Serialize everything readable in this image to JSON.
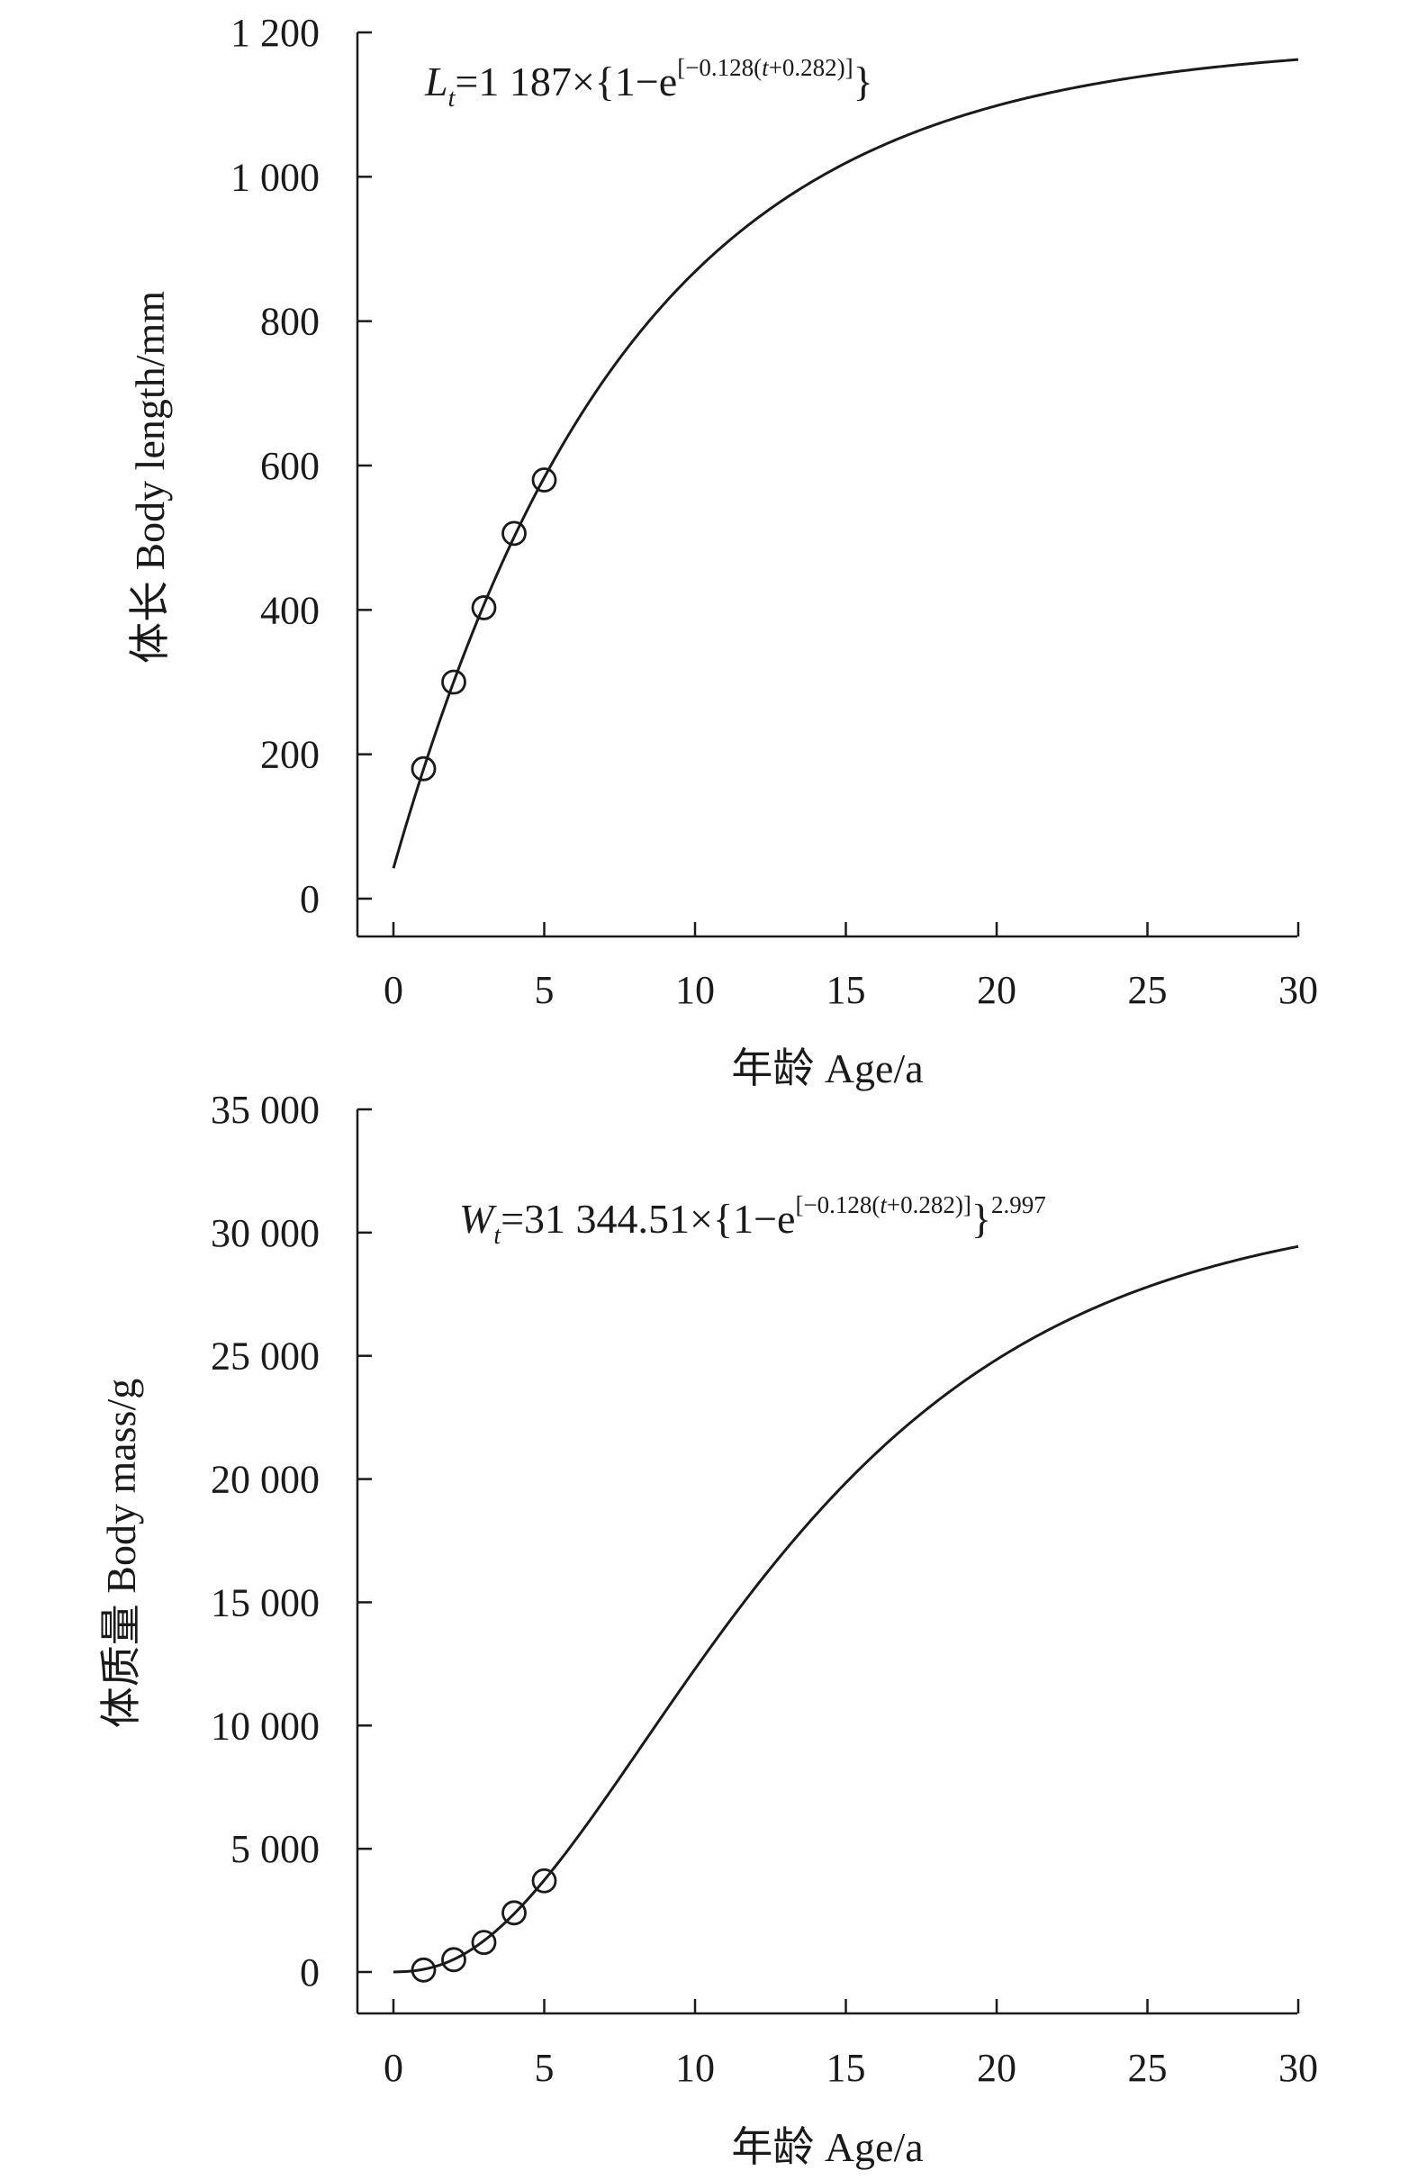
{
  "chart_data": [
    {
      "type": "line",
      "xlabel": "年龄 Age/a",
      "ylabel": "体长 Body length/mm",
      "xlim": [
        0,
        30
      ],
      "ylim": [
        0,
        1200
      ],
      "xticks": [
        0,
        5,
        10,
        15,
        20,
        25,
        30
      ],
      "xtick_labels": [
        "0",
        "5",
        "10",
        "15",
        "20",
        "25",
        "30"
      ],
      "yticks": [
        0,
        200,
        400,
        600,
        800,
        1000,
        1200
      ],
      "ytick_labels": [
        "0",
        "200",
        "400",
        "600",
        "800",
        "1 000",
        "1 200"
      ],
      "equation": {
        "lhs_var": "L",
        "lhs_sub": "t",
        "text_before": "=1 187×{1−e",
        "exp_before": "[−0.128(",
        "exp_var": "t",
        "exp_after": "+0.282)]",
        "text_after": "}",
        "power": ""
      },
      "model": {
        "linf": 1187,
        "k": 0.128,
        "t0": -0.282,
        "b": 1,
        "x_start": 0,
        "x_end": 30
      },
      "points": {
        "x": [
          1,
          2,
          3,
          4,
          5
        ],
        "y": [
          180,
          300,
          403,
          506,
          580
        ]
      },
      "grid": false,
      "legend": "none"
    },
    {
      "type": "line",
      "xlabel": "年龄 Age/a",
      "ylabel": "体质量 Body mass/g",
      "xlim": [
        0,
        30
      ],
      "ylim": [
        0,
        35000
      ],
      "xticks": [
        0,
        5,
        10,
        15,
        20,
        25,
        30
      ],
      "xtick_labels": [
        "0",
        "5",
        "10",
        "15",
        "20",
        "25",
        "30"
      ],
      "yticks": [
        0,
        5000,
        10000,
        15000,
        20000,
        25000,
        30000,
        35000
      ],
      "ytick_labels": [
        "0",
        "5 000",
        "10 000",
        "15 000",
        "20 000",
        "25 000",
        "30 000",
        "35 000"
      ],
      "equation": {
        "lhs_var": "W",
        "lhs_sub": "t",
        "text_before": "=31 344.51×{1−e",
        "exp_before": "[−0.128(",
        "exp_var": "t",
        "exp_after": "+0.282)]",
        "text_after": "}",
        "power": "2.997"
      },
      "model": {
        "linf": 31344.51,
        "k": 0.128,
        "t0": -0.282,
        "b": 2.997,
        "x_start": 0,
        "x_end": 30
      },
      "points": {
        "x": [
          1,
          2,
          3,
          4,
          5
        ],
        "y": [
          80,
          500,
          1200,
          2400,
          3700
        ]
      },
      "grid": false,
      "legend": "none"
    }
  ]
}
